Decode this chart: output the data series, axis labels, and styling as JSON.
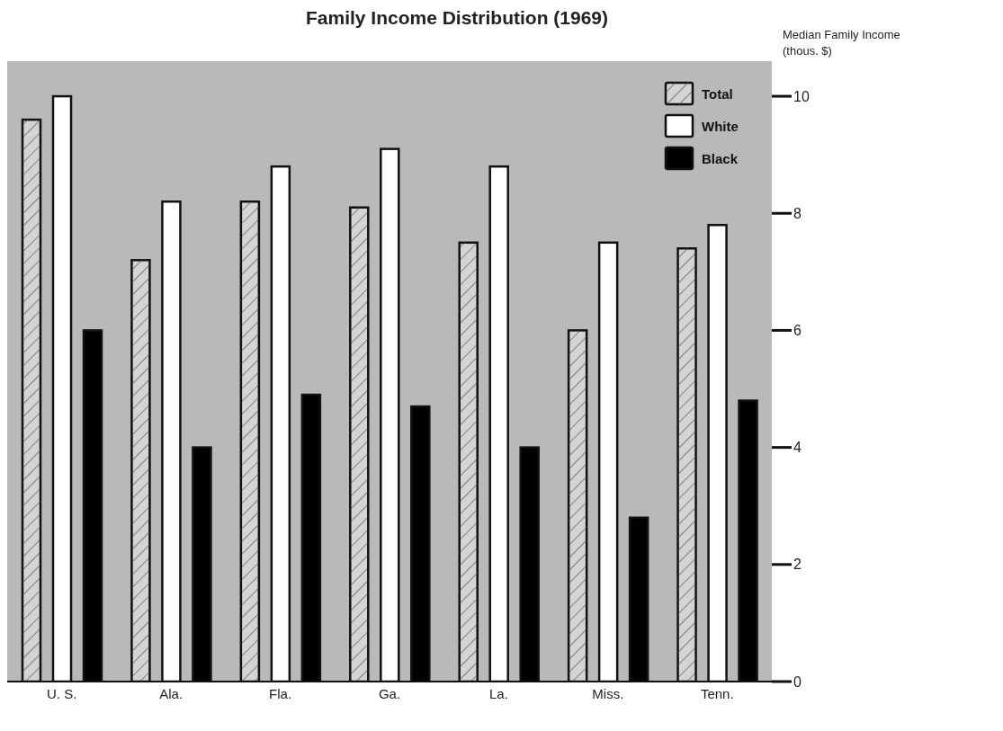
{
  "chart_data": {
    "type": "bar",
    "title": "Family Income Distribution (1969)",
    "ylabel": "Median Family Income (thous. $)",
    "categories": [
      "U. S.",
      "Ala.",
      "Fla.",
      "Ga.",
      "La.",
      "Miss.",
      "Tenn."
    ],
    "series": [
      {
        "name": "Total",
        "color": "#d4d4d4",
        "values": [
          9.6,
          7.2,
          8.2,
          8.1,
          7.5,
          6.0,
          7.4
        ]
      },
      {
        "name": "White",
        "color": "#ffffff",
        "values": [
          10.0,
          8.2,
          8.8,
          9.1,
          8.8,
          7.5,
          7.8
        ]
      },
      {
        "name": "Black",
        "color": "#000000",
        "values": [
          6.0,
          4.0,
          4.9,
          4.7,
          4.0,
          2.8,
          4.8
        ]
      }
    ],
    "ylim": [
      0,
      10.6
    ],
    "yticks": [
      0,
      2,
      4,
      6,
      8,
      10
    ],
    "grid": false,
    "legend": "top right"
  }
}
